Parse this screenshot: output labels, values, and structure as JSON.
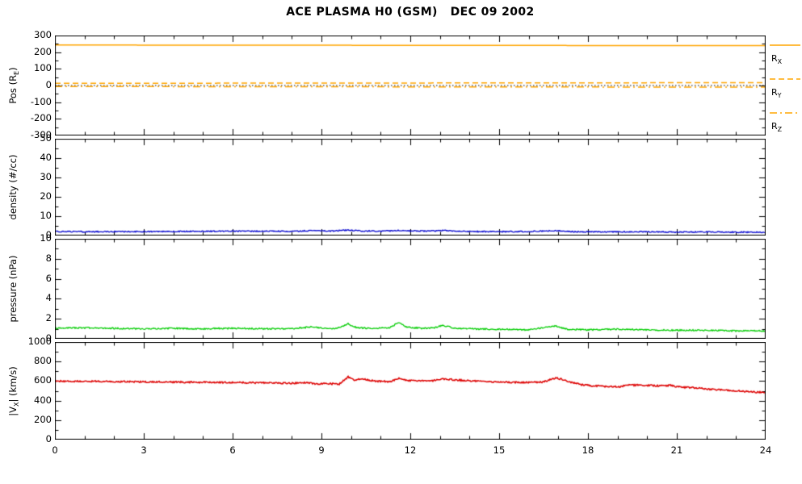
{
  "title": "ACE PLASMA H0 (GSM)   DEC 09 2002",
  "colors": {
    "background": "#FFFFFF",
    "axis": "#000000",
    "orange": "#FFA500",
    "blue": "#0000CD",
    "green": "#00CC00",
    "red": "#DD0000"
  },
  "x_axis": {
    "min": 0,
    "max": 24,
    "major_ticks": [
      0,
      3,
      6,
      9,
      12,
      15,
      18,
      21,
      24
    ],
    "minor_step": 1
  },
  "legend": {
    "position": "right",
    "entries": [
      {
        "pre": "R",
        "sub": "X",
        "style": "solid",
        "color": "#FFA500"
      },
      {
        "pre": "R",
        "sub": "Y",
        "style": "dash",
        "color": "#FFA500"
      },
      {
        "pre": "R",
        "sub": "Z",
        "style": "dashdot",
        "color": "#FFA500"
      }
    ]
  },
  "chart_data": [
    {
      "type": "line",
      "name": "position",
      "ylabel": {
        "pre": "Pos (R",
        "sub": "E",
        "post": ")"
      },
      "ylim": [
        -300,
        300
      ],
      "yticks": [
        -300,
        -200,
        -100,
        0,
        100,
        200,
        300
      ],
      "y_minor_step": 50,
      "extra_lines": [
        {
          "value": 0,
          "color": "#000000",
          "style": "dot",
          "width": 1
        }
      ],
      "series": [
        {
          "name": "R_X",
          "color": "#FFA500",
          "style": "solid",
          "width": 1.5,
          "noise": 0,
          "points": [
            [
              0,
              243
            ],
            [
              24,
              239
            ]
          ]
        },
        {
          "name": "R_Y",
          "color": "#FFA500",
          "style": "dash",
          "width": 1.5,
          "noise": 0,
          "points": [
            [
              0,
              13
            ],
            [
              24,
              17
            ]
          ]
        },
        {
          "name": "R_Z",
          "color": "#FFA500",
          "style": "dashdot",
          "width": 1.5,
          "noise": 0,
          "points": [
            [
              0,
              -6
            ],
            [
              24,
              -10
            ]
          ]
        }
      ]
    },
    {
      "type": "line",
      "name": "density",
      "ylabel": {
        "pre": "density (#/cc)",
        "sub": "",
        "post": ""
      },
      "ylim": [
        0,
        50
      ],
      "yticks": [
        0,
        10,
        20,
        30,
        40,
        50
      ],
      "y_minor_step": 5,
      "extra_lines": [],
      "series": [
        {
          "name": "density",
          "color": "#0000CD",
          "style": "solid",
          "width": 1.3,
          "noise": 0.3,
          "points": [
            [
              0,
              2.1
            ],
            [
              1,
              2.0
            ],
            [
              2,
              2.05
            ],
            [
              3,
              2.0
            ],
            [
              4,
              2.1
            ],
            [
              5,
              2.15
            ],
            [
              6,
              2.3
            ],
            [
              7,
              2.25
            ],
            [
              8,
              2.2
            ],
            [
              8.7,
              2.5
            ],
            [
              9.3,
              2.3
            ],
            [
              9.9,
              2.8
            ],
            [
              10.3,
              2.4
            ],
            [
              11,
              2.2
            ],
            [
              11.6,
              2.7
            ],
            [
              12,
              2.4
            ],
            [
              12.6,
              2.3
            ],
            [
              13.1,
              2.6
            ],
            [
              13.6,
              2.3
            ],
            [
              14,
              2.1
            ],
            [
              15,
              2.0
            ],
            [
              16,
              2.1
            ],
            [
              16.9,
              2.5
            ],
            [
              17.5,
              2.0
            ],
            [
              18,
              1.9
            ],
            [
              19,
              1.95
            ],
            [
              20,
              1.9
            ],
            [
              21,
              1.8
            ],
            [
              22,
              1.85
            ],
            [
              23,
              1.75
            ],
            [
              24,
              1.7
            ]
          ]
        }
      ]
    },
    {
      "type": "line",
      "name": "pressure",
      "ylabel": {
        "pre": "pressure (nPa)",
        "sub": "",
        "post": ""
      },
      "ylim": [
        0,
        10
      ],
      "yticks": [
        0,
        2,
        4,
        6,
        8,
        10
      ],
      "y_minor_step": 1,
      "extra_lines": [],
      "series": [
        {
          "name": "pressure",
          "color": "#00CC00",
          "style": "solid",
          "width": 1.3,
          "noise": 0.07,
          "points": [
            [
              0,
              1.05
            ],
            [
              1,
              1.1
            ],
            [
              2,
              1.05
            ],
            [
              3,
              1.0
            ],
            [
              4,
              1.05
            ],
            [
              5,
              1.0
            ],
            [
              6,
              1.05
            ],
            [
              7,
              1.0
            ],
            [
              8,
              1.0
            ],
            [
              8.7,
              1.2
            ],
            [
              9.2,
              1.0
            ],
            [
              9.6,
              1.1
            ],
            [
              9.9,
              1.5
            ],
            [
              10.2,
              1.1
            ],
            [
              10.8,
              1.05
            ],
            [
              11.3,
              1.1
            ],
            [
              11.6,
              1.6
            ],
            [
              11.9,
              1.15
            ],
            [
              12.4,
              1.05
            ],
            [
              12.8,
              1.1
            ],
            [
              13.1,
              1.35
            ],
            [
              13.5,
              1.05
            ],
            [
              14,
              1.0
            ],
            [
              15,
              0.95
            ],
            [
              16,
              0.9
            ],
            [
              16.9,
              1.3
            ],
            [
              17.3,
              0.95
            ],
            [
              18,
              0.9
            ],
            [
              19,
              0.95
            ],
            [
              20,
              0.9
            ],
            [
              21,
              0.85
            ],
            [
              22,
              0.85
            ],
            [
              23,
              0.8
            ],
            [
              24,
              0.8
            ]
          ]
        }
      ]
    },
    {
      "type": "line",
      "name": "speed",
      "ylabel": {
        "pre": "|V",
        "sub": "X",
        "post": "| (km/s)"
      },
      "ylim": [
        0,
        1000
      ],
      "yticks": [
        0,
        200,
        400,
        600,
        800,
        1000
      ],
      "y_minor_step": 100,
      "extra_lines": [],
      "series": [
        {
          "name": "Vx",
          "color": "#DD0000",
          "style": "solid",
          "width": 1.5,
          "noise": 8,
          "points": [
            [
              0,
              600
            ],
            [
              1,
              598
            ],
            [
              2,
              596
            ],
            [
              3,
              592
            ],
            [
              4,
              590
            ],
            [
              5,
              588
            ],
            [
              6,
              585
            ],
            [
              7,
              582
            ],
            [
              8,
              578
            ],
            [
              8.5,
              586
            ],
            [
              8.8,
              568
            ],
            [
              9.2,
              575
            ],
            [
              9.6,
              568
            ],
            [
              9.9,
              642
            ],
            [
              10.1,
              612
            ],
            [
              10.4,
              622
            ],
            [
              10.8,
              600
            ],
            [
              11.3,
              595
            ],
            [
              11.6,
              626
            ],
            [
              11.9,
              606
            ],
            [
              12.3,
              600
            ],
            [
              12.8,
              606
            ],
            [
              13.1,
              622
            ],
            [
              13.5,
              612
            ],
            [
              14,
              602
            ],
            [
              14.5,
              596
            ],
            [
              15,
              590
            ],
            [
              15.5,
              586
            ],
            [
              16,
              586
            ],
            [
              16.5,
              590
            ],
            [
              16.9,
              632
            ],
            [
              17.2,
              612
            ],
            [
              17.5,
              582
            ],
            [
              17.8,
              562
            ],
            [
              18,
              556
            ],
            [
              18.5,
              546
            ],
            [
              19,
              540
            ],
            [
              19.3,
              556
            ],
            [
              19.7,
              560
            ],
            [
              20,
              556
            ],
            [
              20.4,
              550
            ],
            [
              20.8,
              556
            ],
            [
              21,
              542
            ],
            [
              21.5,
              532
            ],
            [
              22,
              520
            ],
            [
              22.5,
              510
            ],
            [
              23,
              500
            ],
            [
              23.5,
              490
            ],
            [
              24,
              482
            ]
          ]
        }
      ]
    }
  ]
}
